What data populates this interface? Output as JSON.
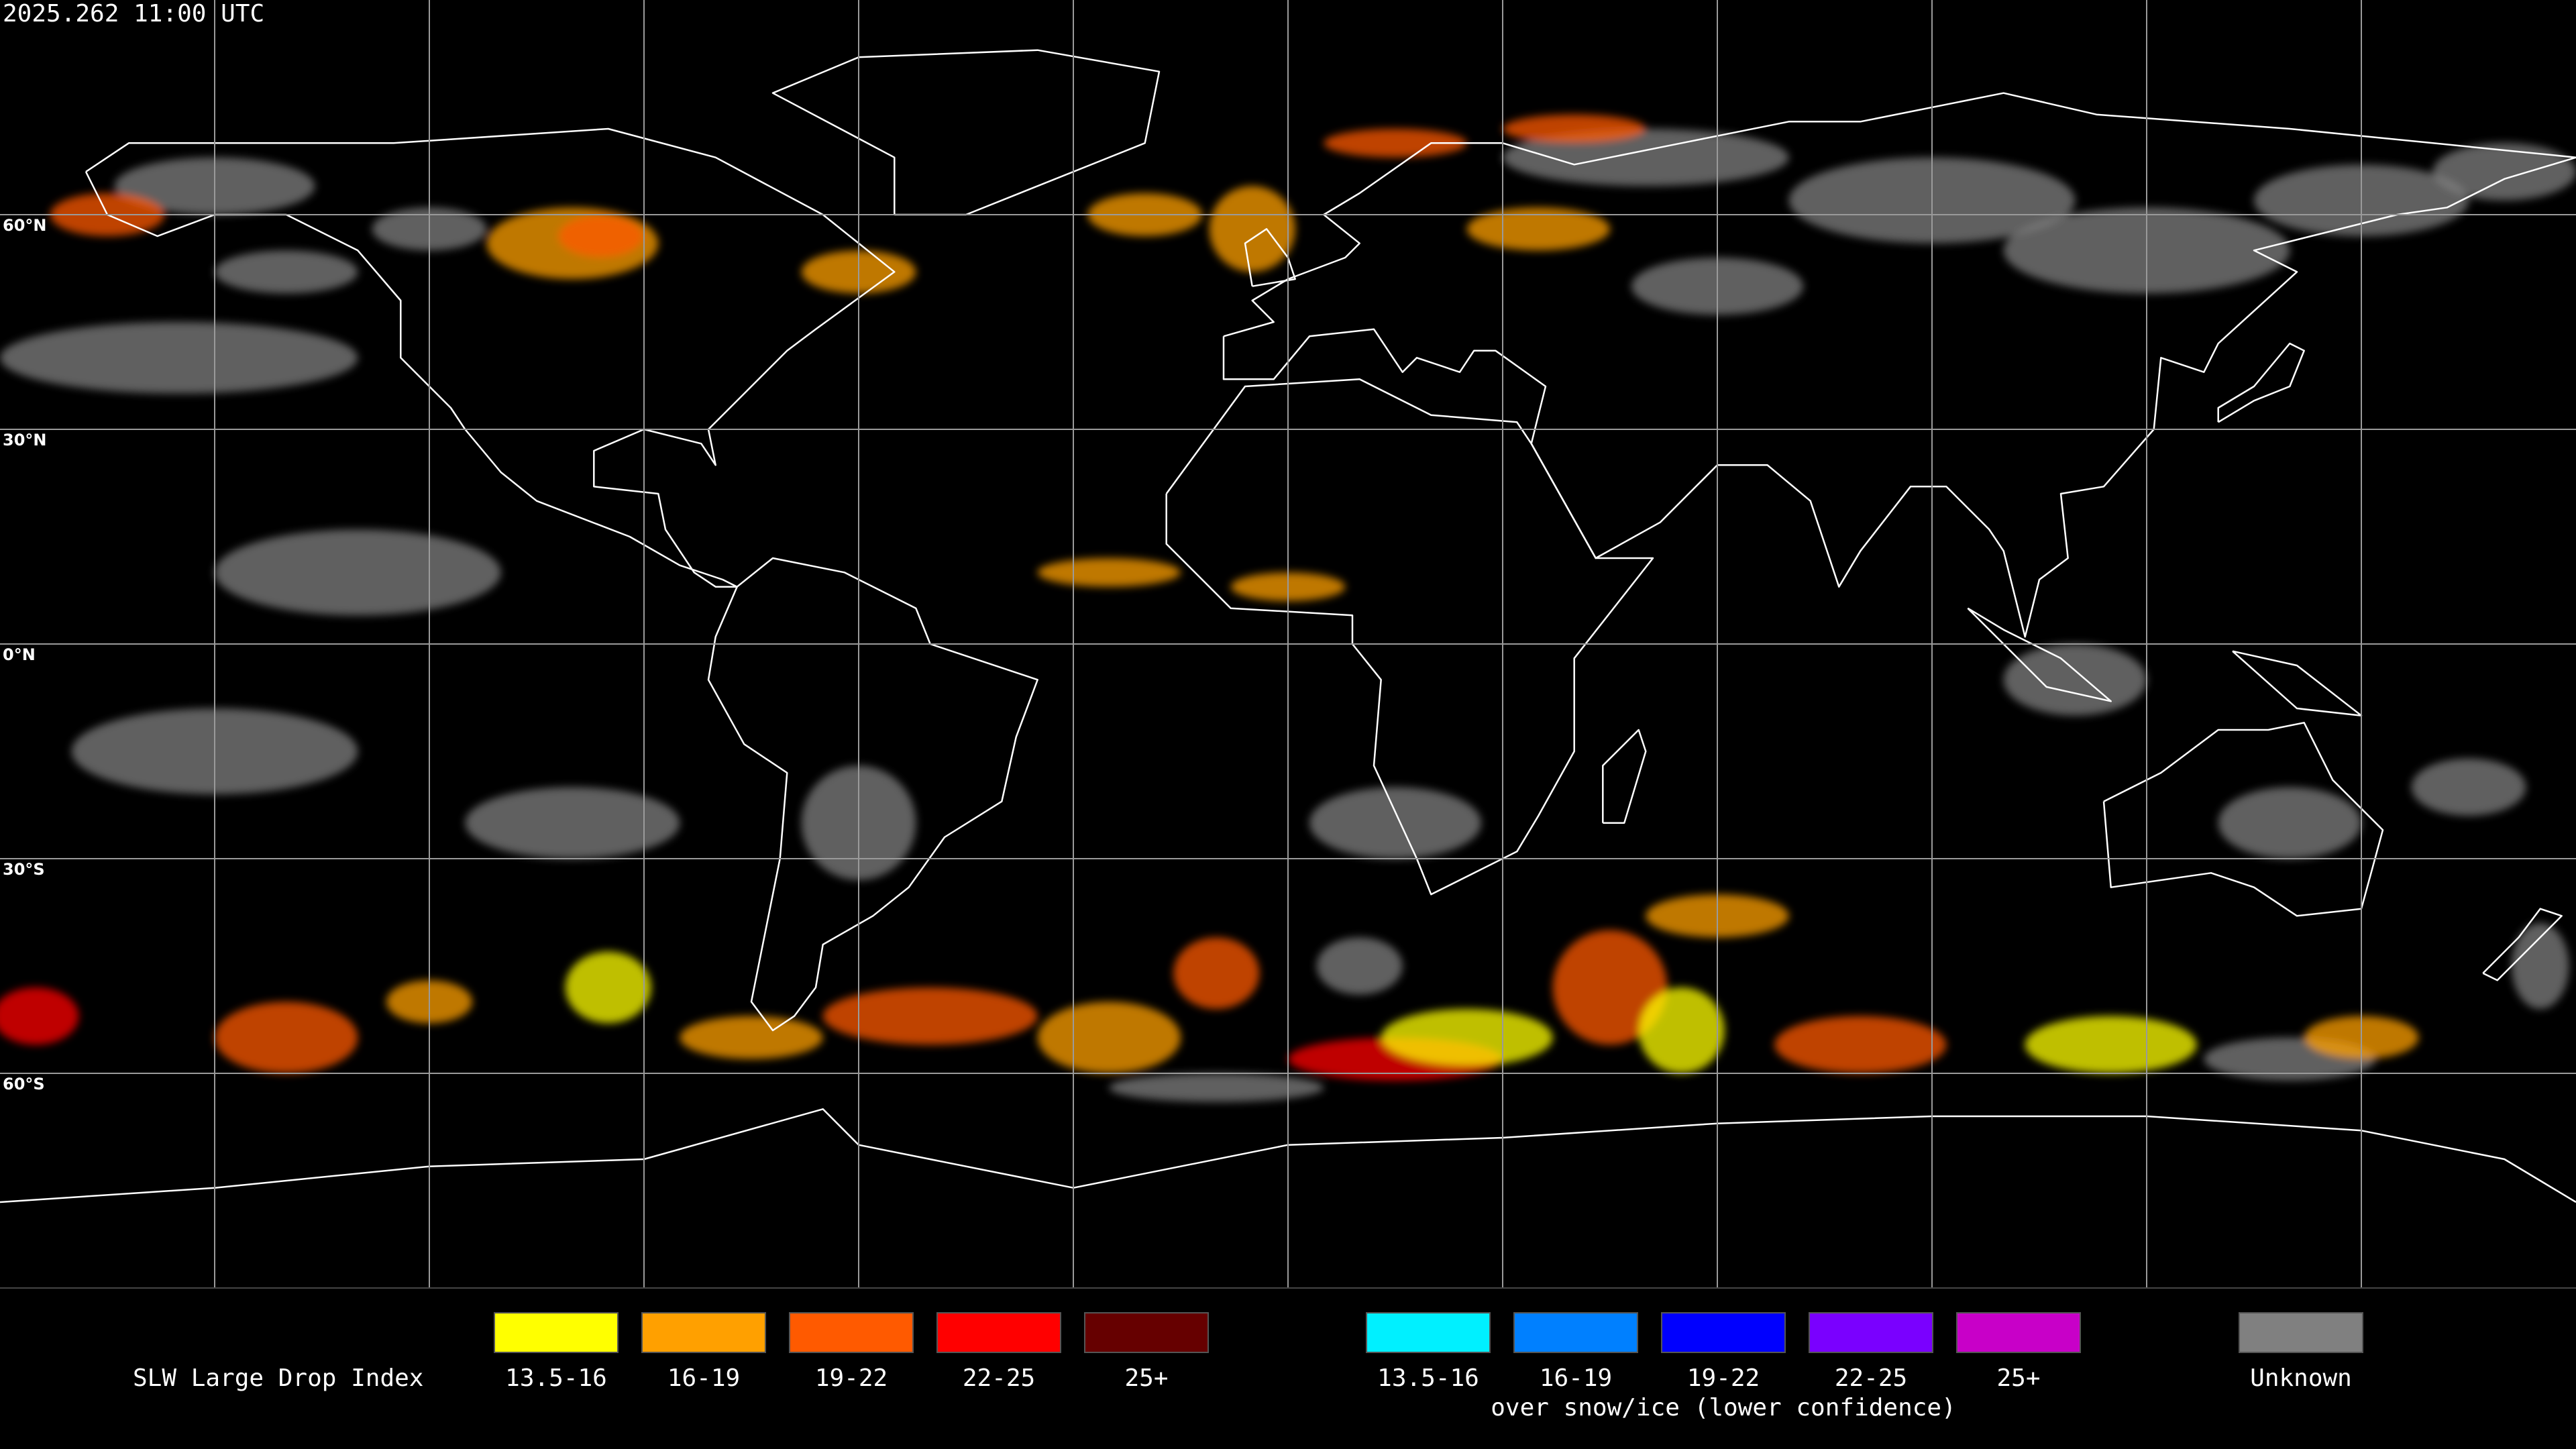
{
  "timestamp": "2025.262 11:00 UTC",
  "latitude_labels": [
    "60°N",
    "30°N",
    "0°N",
    "30°S",
    "60°S"
  ],
  "legend": {
    "title": "SLW Large Drop Index",
    "groups": [
      {
        "items": [
          {
            "label": "13.5-16",
            "color": "#ffff00"
          },
          {
            "label": "16-19",
            "color": "#ffa000"
          },
          {
            "label": "19-22",
            "color": "#ff5a00"
          },
          {
            "label": "22-25",
            "color": "#ff0000"
          },
          {
            "label": "25+",
            "color": "#660000"
          }
        ]
      },
      {
        "subtitle": "over snow/ice (lower confidence)",
        "items": [
          {
            "label": "13.5-16",
            "color": "#00f0ff"
          },
          {
            "label": "16-19",
            "color": "#0080ff"
          },
          {
            "label": "19-22",
            "color": "#0000ff"
          },
          {
            "label": "22-25",
            "color": "#7a00ff"
          },
          {
            "label": "25+",
            "color": "#c800c8"
          }
        ]
      }
    ],
    "unknown": {
      "label": "Unknown",
      "color": "#808080"
    }
  }
}
